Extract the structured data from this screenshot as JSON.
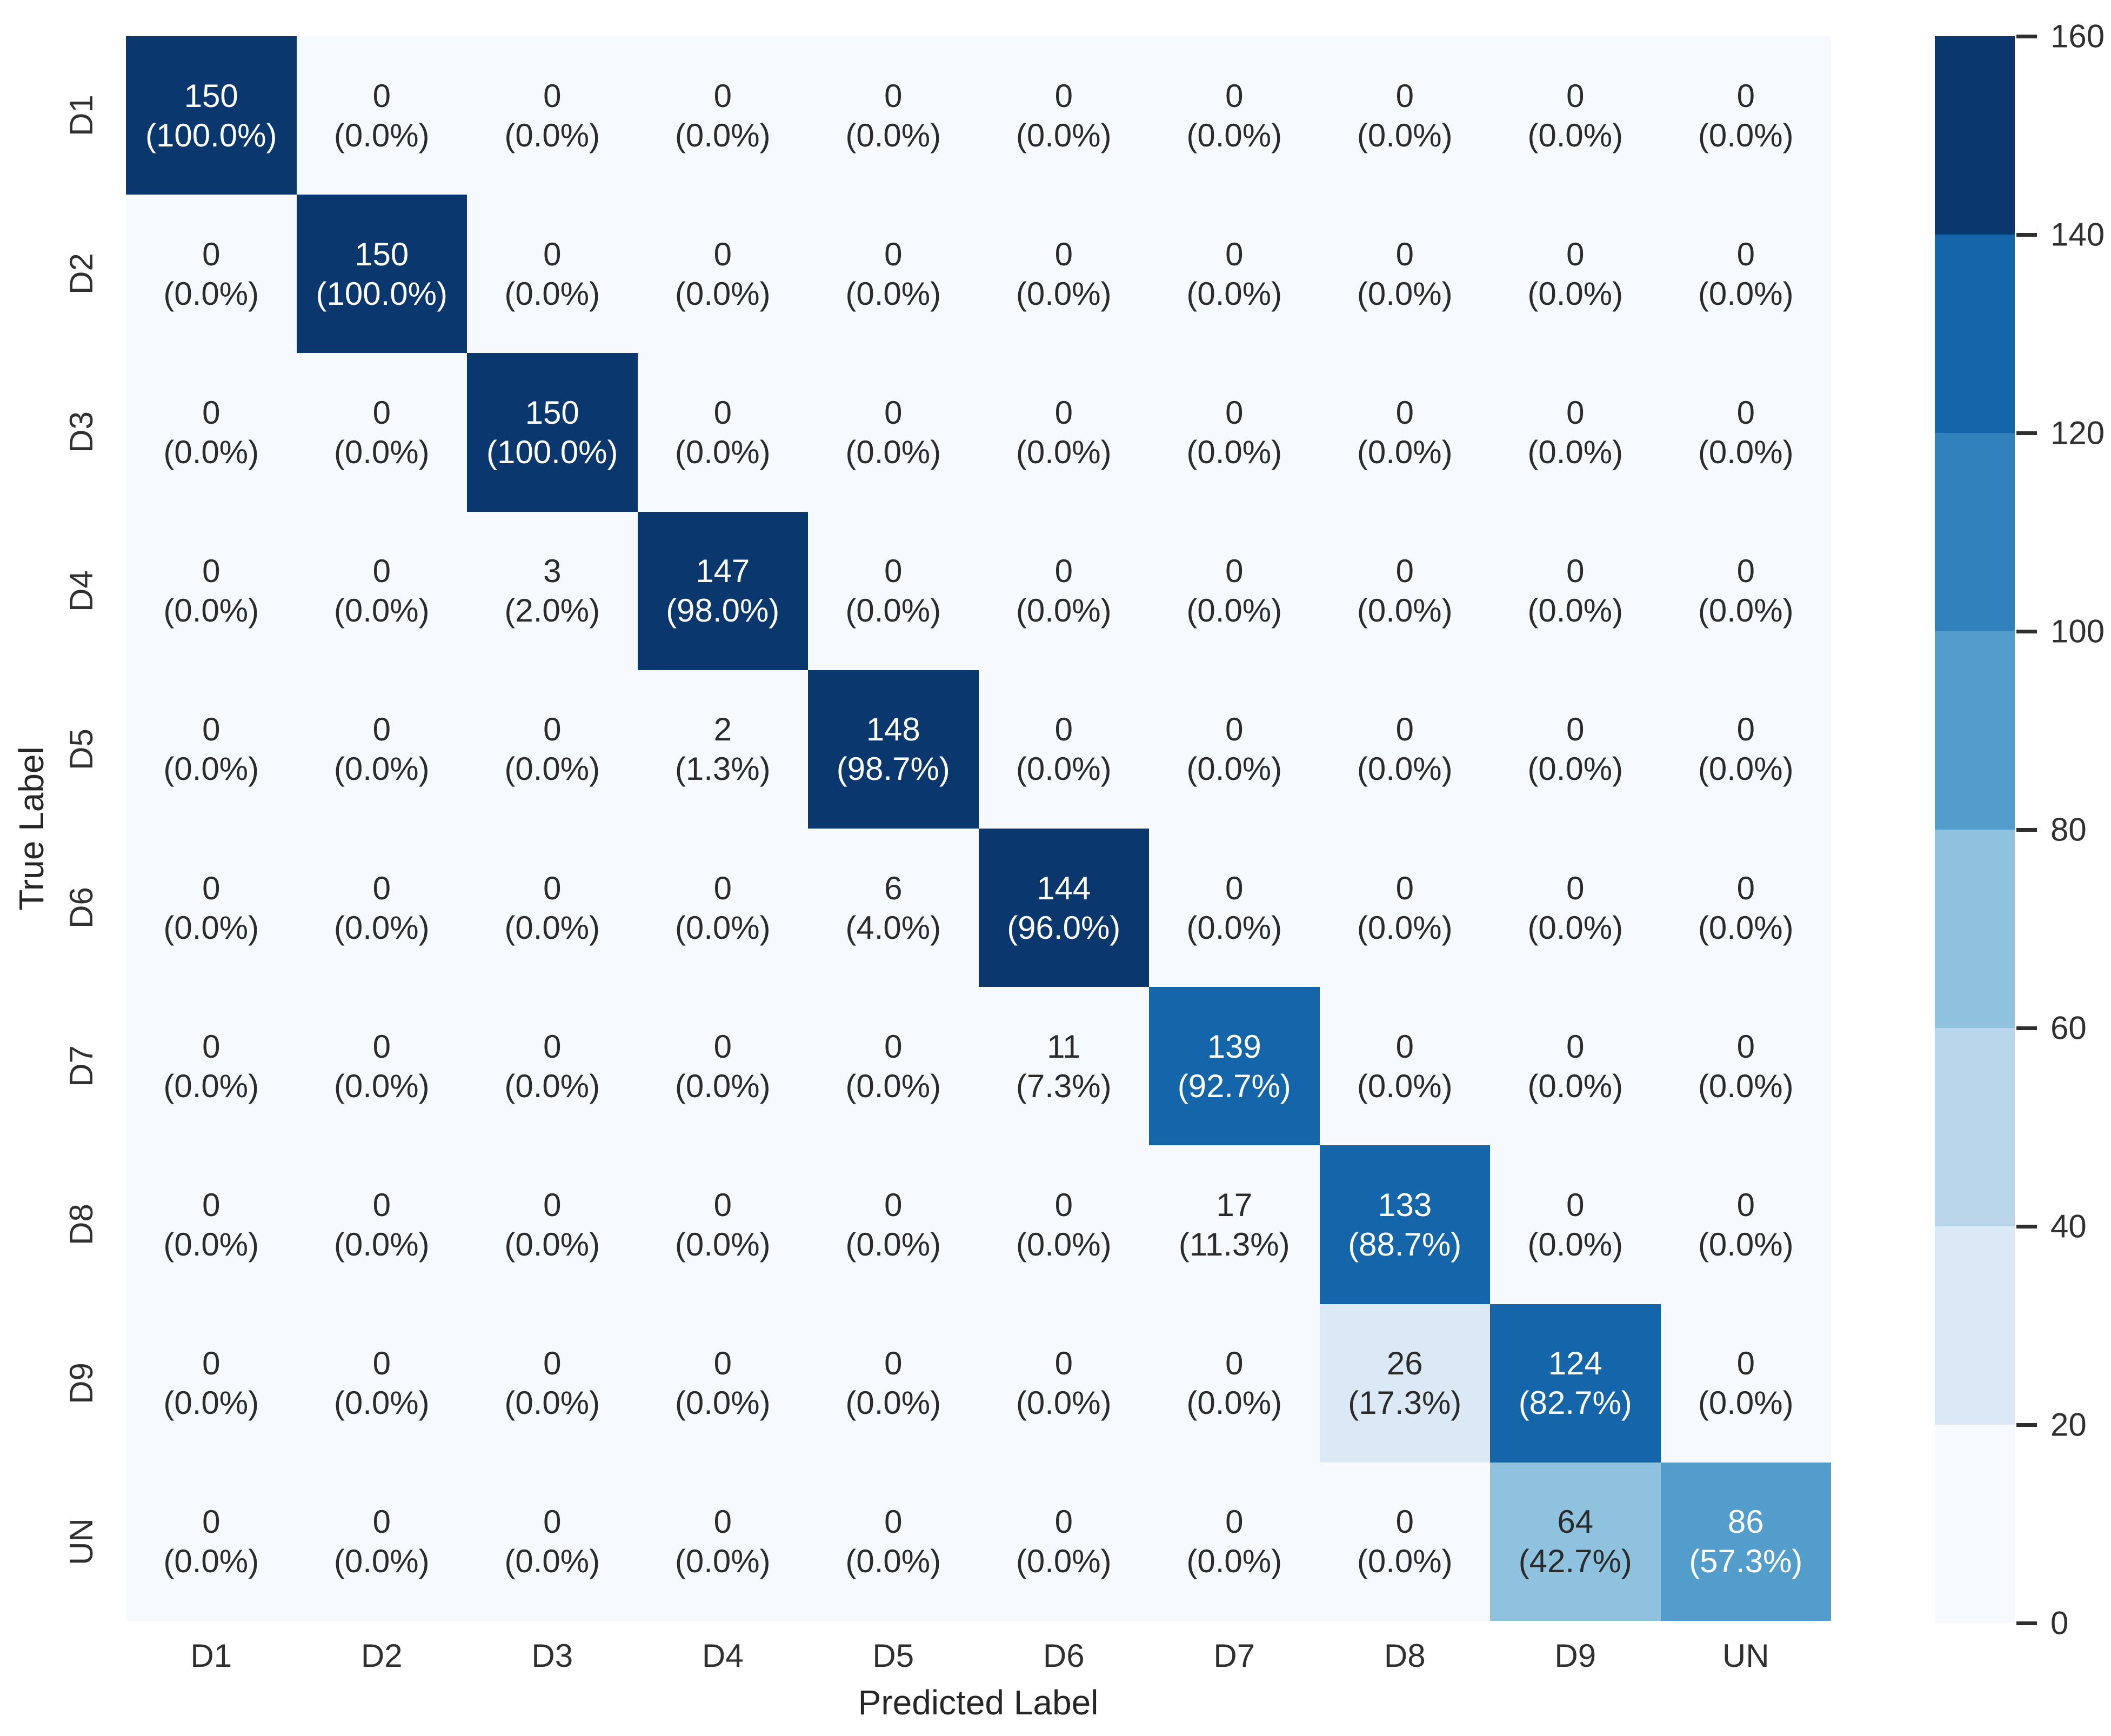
{
  "chart_data": {
    "type": "heatmap",
    "title": "",
    "xlabel": "Predicted Label",
    "ylabel": "True Label",
    "categories": [
      "D1",
      "D2",
      "D3",
      "D4",
      "D5",
      "D6",
      "D7",
      "D8",
      "D9",
      "UN"
    ],
    "x_tick_labels": [
      "D1",
      "D2",
      "D3",
      "D4",
      "D5",
      "D6",
      "D7",
      "D8",
      "D9",
      "UN"
    ],
    "y_tick_labels": [
      "D1",
      "D2",
      "D3",
      "D4",
      "D5",
      "D6",
      "D7",
      "D8",
      "D9",
      "UN"
    ],
    "vmin": 0,
    "vmax": 160,
    "band_step": 20,
    "colorbar_ticks": [
      160,
      140,
      120,
      100,
      80,
      60,
      40,
      20,
      0
    ],
    "band_colors": [
      "#f6fafe",
      "#dbe8f5",
      "#b9d6ea",
      "#8ec2de",
      "#529dcc",
      "#3181bd",
      "#1565ab",
      "#0b376f"
    ],
    "cell_bg_light_text": "#ffffff",
    "cell_bg_dark_text": "#2b2b2b",
    "white_text_threshold": 80,
    "legend_position": "right-colorbar",
    "grid": false,
    "rows": [
      {
        "label": "D1",
        "counts": [
          150,
          0,
          0,
          0,
          0,
          0,
          0,
          0,
          0,
          0
        ],
        "percent_labels": [
          "(100.0%)",
          "(0.0%)",
          "(0.0%)",
          "(0.0%)",
          "(0.0%)",
          "(0.0%)",
          "(0.0%)",
          "(0.0%)",
          "(0.0%)",
          "(0.0%)"
        ]
      },
      {
        "label": "D2",
        "counts": [
          0,
          150,
          0,
          0,
          0,
          0,
          0,
          0,
          0,
          0
        ],
        "percent_labels": [
          "(0.0%)",
          "(100.0%)",
          "(0.0%)",
          "(0.0%)",
          "(0.0%)",
          "(0.0%)",
          "(0.0%)",
          "(0.0%)",
          "(0.0%)",
          "(0.0%)"
        ]
      },
      {
        "label": "D3",
        "counts": [
          0,
          0,
          150,
          0,
          0,
          0,
          0,
          0,
          0,
          0
        ],
        "percent_labels": [
          "(0.0%)",
          "(0.0%)",
          "(100.0%)",
          "(0.0%)",
          "(0.0%)",
          "(0.0%)",
          "(0.0%)",
          "(0.0%)",
          "(0.0%)",
          "(0.0%)"
        ]
      },
      {
        "label": "D4",
        "counts": [
          0,
          0,
          3,
          147,
          0,
          0,
          0,
          0,
          0,
          0
        ],
        "percent_labels": [
          "(0.0%)",
          "(0.0%)",
          "(2.0%)",
          "(98.0%)",
          "(0.0%)",
          "(0.0%)",
          "(0.0%)",
          "(0.0%)",
          "(0.0%)",
          "(0.0%)"
        ]
      },
      {
        "label": "D5",
        "counts": [
          0,
          0,
          0,
          2,
          148,
          0,
          0,
          0,
          0,
          0
        ],
        "percent_labels": [
          "(0.0%)",
          "(0.0%)",
          "(0.0%)",
          "(1.3%)",
          "(98.7%)",
          "(0.0%)",
          "(0.0%)",
          "(0.0%)",
          "(0.0%)",
          "(0.0%)"
        ]
      },
      {
        "label": "D6",
        "counts": [
          0,
          0,
          0,
          0,
          6,
          144,
          0,
          0,
          0,
          0
        ],
        "percent_labels": [
          "(0.0%)",
          "(0.0%)",
          "(0.0%)",
          "(0.0%)",
          "(4.0%)",
          "(96.0%)",
          "(0.0%)",
          "(0.0%)",
          "(0.0%)",
          "(0.0%)"
        ]
      },
      {
        "label": "D7",
        "counts": [
          0,
          0,
          0,
          0,
          0,
          11,
          139,
          0,
          0,
          0
        ],
        "percent_labels": [
          "(0.0%)",
          "(0.0%)",
          "(0.0%)",
          "(0.0%)",
          "(0.0%)",
          "(7.3%)",
          "(92.7%)",
          "(0.0%)",
          "(0.0%)",
          "(0.0%)"
        ]
      },
      {
        "label": "D8",
        "counts": [
          0,
          0,
          0,
          0,
          0,
          0,
          17,
          133,
          0,
          0
        ],
        "percent_labels": [
          "(0.0%)",
          "(0.0%)",
          "(0.0%)",
          "(0.0%)",
          "(0.0%)",
          "(0.0%)",
          "(11.3%)",
          "(88.7%)",
          "(0.0%)",
          "(0.0%)"
        ]
      },
      {
        "label": "D9",
        "counts": [
          0,
          0,
          0,
          0,
          0,
          0,
          0,
          26,
          124,
          0
        ],
        "percent_labels": [
          "(0.0%)",
          "(0.0%)",
          "(0.0%)",
          "(0.0%)",
          "(0.0%)",
          "(0.0%)",
          "(0.0%)",
          "(17.3%)",
          "(82.7%)",
          "(0.0%)"
        ]
      },
      {
        "label": "UN",
        "counts": [
          0,
          0,
          0,
          0,
          0,
          0,
          0,
          0,
          64,
          86
        ],
        "percent_labels": [
          "(0.0%)",
          "(0.0%)",
          "(0.0%)",
          "(0.0%)",
          "(0.0%)",
          "(0.0%)",
          "(0.0%)",
          "(0.0%)",
          "(42.7%)",
          "(57.3%)"
        ]
      }
    ]
  }
}
